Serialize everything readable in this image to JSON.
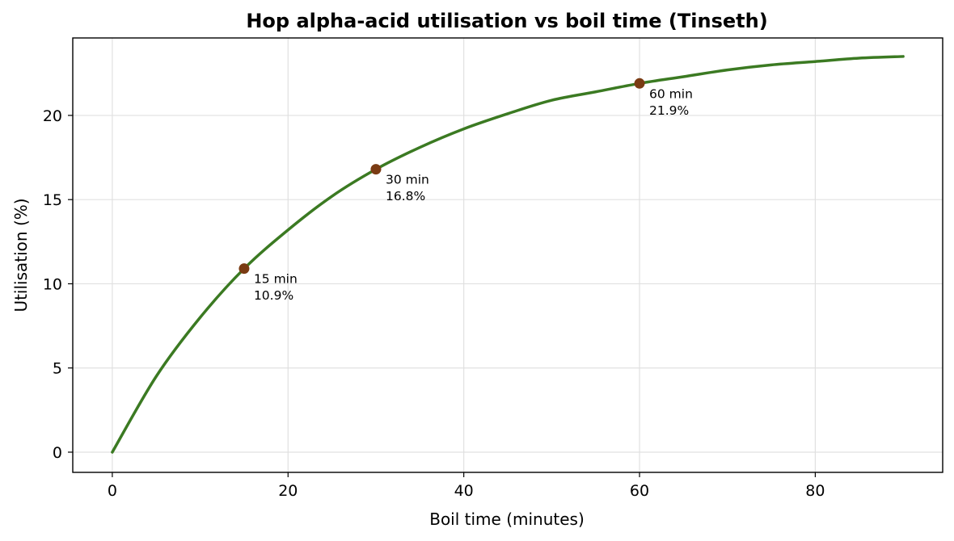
{
  "chart_data": {
    "type": "line",
    "title": "Hop alpha-acid utilisation vs boil time (Tinseth)",
    "xlabel": "Boil time (minutes)",
    "ylabel": "Utilisation (%)",
    "xlim": [
      -4.5,
      94.5
    ],
    "ylim": [
      -1.2,
      24.6
    ],
    "xticks": [
      0,
      20,
      40,
      60,
      80
    ],
    "yticks": [
      0,
      5,
      10,
      15,
      20
    ],
    "grid": true,
    "series": [
      {
        "color": "#3b7a22",
        "x": [
          0,
          5,
          10,
          15,
          20,
          25,
          30,
          35,
          40,
          45,
          50,
          55,
          60,
          65,
          70,
          75,
          80,
          85,
          90
        ],
        "y": [
          0,
          4.5,
          8.0,
          10.9,
          13.2,
          15.2,
          16.8,
          18.1,
          19.2,
          20.1,
          20.9,
          21.4,
          21.9,
          22.3,
          22.7,
          23.0,
          23.2,
          23.4,
          23.5
        ]
      }
    ],
    "markers": {
      "color": "#7a3b13",
      "points": [
        {
          "x": 15,
          "y": 10.9,
          "label_line1": "15 min",
          "label_line2": "10.9%"
        },
        {
          "x": 30,
          "y": 16.8,
          "label_line1": "30 min",
          "label_line2": "16.8%"
        },
        {
          "x": 60,
          "y": 21.9,
          "label_line1": "60 min",
          "label_line2": "21.9%"
        }
      ]
    }
  }
}
